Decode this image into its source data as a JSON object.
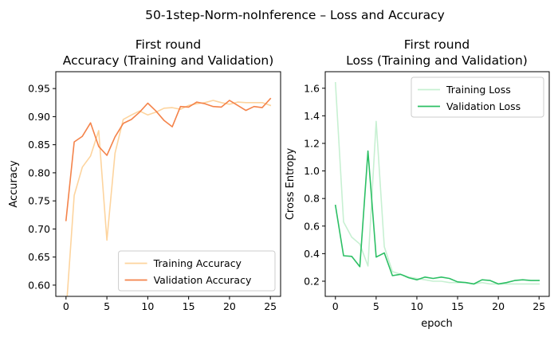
{
  "suptitle": "50-1step-Norm-noInference – Loss and Accuracy",
  "chart_data": [
    {
      "type": "line",
      "title_line1": "First round",
      "title_line2": "Accuracy (Training and Validation)",
      "xlabel": "",
      "ylabel": "Accuracy",
      "xlim": [
        -1.25,
        26.25
      ],
      "ylim": [
        0.58,
        0.98
      ],
      "xticks": [
        0,
        5,
        10,
        15,
        20,
        25
      ],
      "yticks": [
        0.6,
        0.65,
        0.7,
        0.75,
        0.8,
        0.85,
        0.9,
        0.95
      ],
      "ytick_labels": [
        "0.60",
        "0.65",
        "0.70",
        "0.75",
        "0.80",
        "0.85",
        "0.90",
        "0.95"
      ],
      "grid": false,
      "legend_position": "lower-right",
      "series": [
        {
          "name": "Training Accuracy",
          "color": "#fdd49e",
          "x": [
            0,
            1,
            2,
            3,
            4,
            5,
            6,
            7,
            8,
            9,
            10,
            11,
            12,
            13,
            14,
            15,
            16,
            17,
            18,
            19,
            20,
            21,
            22,
            23,
            24,
            25
          ],
          "values": [
            0.55,
            0.76,
            0.81,
            0.83,
            0.875,
            0.68,
            0.835,
            0.895,
            0.903,
            0.91,
            0.903,
            0.908,
            0.915,
            0.916,
            0.913,
            0.92,
            0.923,
            0.925,
            0.929,
            0.925,
            0.922,
            0.926,
            0.925,
            0.925,
            0.925,
            0.92
          ]
        },
        {
          "name": "Validation Accuracy",
          "color": "#f4834a",
          "x": [
            0,
            1,
            2,
            3,
            4,
            5,
            6,
            7,
            8,
            9,
            10,
            11,
            12,
            13,
            14,
            15,
            16,
            17,
            18,
            19,
            20,
            21,
            22,
            23,
            24,
            25
          ],
          "values": [
            0.715,
            0.855,
            0.865,
            0.889,
            0.847,
            0.831,
            0.864,
            0.888,
            0.895,
            0.908,
            0.924,
            0.91,
            0.893,
            0.882,
            0.918,
            0.917,
            0.926,
            0.923,
            0.918,
            0.917,
            0.929,
            0.92,
            0.911,
            0.918,
            0.916,
            0.932
          ]
        }
      ]
    },
    {
      "type": "line",
      "title_line1": "First round",
      "title_line2": "Loss (Training and Validation)",
      "xlabel": "epoch",
      "ylabel": "Cross Entropy",
      "xlim": [
        -1.25,
        26.25
      ],
      "ylim": [
        0.09,
        1.72
      ],
      "xticks": [
        0,
        5,
        10,
        15,
        20,
        25
      ],
      "yticks": [
        0.2,
        0.4,
        0.6,
        0.8,
        1.0,
        1.2,
        1.4,
        1.6
      ],
      "ytick_labels": [
        "0.2",
        "0.4",
        "0.6",
        "0.8",
        "1.0",
        "1.2",
        "1.4",
        "1.6"
      ],
      "grid": false,
      "legend_position": "upper-right",
      "series": [
        {
          "name": "Training Loss",
          "color": "#c7f0d2",
          "x": [
            0,
            1,
            2,
            3,
            4,
            5,
            6,
            7,
            8,
            9,
            10,
            11,
            12,
            13,
            14,
            15,
            16,
            17,
            18,
            19,
            20,
            21,
            22,
            23,
            24,
            25
          ],
          "values": [
            1.64,
            0.63,
            0.52,
            0.47,
            0.31,
            1.36,
            0.45,
            0.27,
            0.25,
            0.23,
            0.22,
            0.21,
            0.2,
            0.2,
            0.19,
            0.19,
            0.19,
            0.18,
            0.19,
            0.18,
            0.18,
            0.18,
            0.18,
            0.18,
            0.18,
            0.18
          ]
        },
        {
          "name": "Validation Loss",
          "color": "#2cbf64",
          "x": [
            0,
            1,
            2,
            3,
            4,
            5,
            6,
            7,
            8,
            9,
            10,
            11,
            12,
            13,
            14,
            15,
            16,
            17,
            18,
            19,
            20,
            21,
            22,
            23,
            24,
            25
          ],
          "values": [
            0.75,
            0.385,
            0.38,
            0.305,
            1.145,
            0.375,
            0.405,
            0.24,
            0.25,
            0.225,
            0.21,
            0.23,
            0.22,
            0.23,
            0.22,
            0.195,
            0.19,
            0.18,
            0.21,
            0.205,
            0.18,
            0.19,
            0.205,
            0.21,
            0.205,
            0.205
          ]
        }
      ]
    }
  ]
}
